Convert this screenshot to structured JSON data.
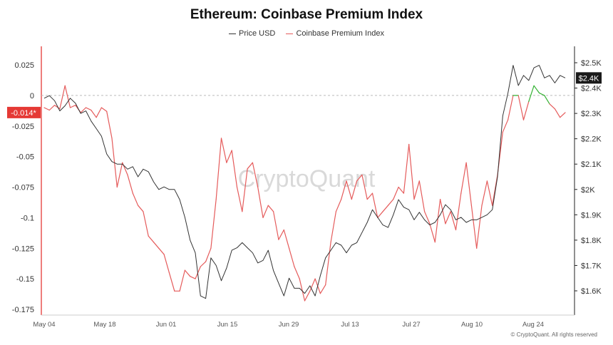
{
  "colors": {
    "price": "#333333",
    "premium_up": "#e55b5b",
    "premium_green": "#34b233",
    "axis_red": "#e53935",
    "badge_dark": "#1a1a1a"
  },
  "chart_data": {
    "type": "line",
    "title": "Ethereum: Coinbase Premium Index",
    "legend_position": "top-center",
    "grid": false,
    "x_tick_labels": [
      "May 04",
      "May 18",
      "Jun 01",
      "Jun 15",
      "Jun 29",
      "Jul 13",
      "Jul 27",
      "Aug 10",
      "Aug 24"
    ],
    "y_left": {
      "ticks": [
        "0.025",
        "0",
        "-0.025",
        "-0.05",
        "-0.075",
        "-0.1",
        "-0.125",
        "-0.15",
        "-0.175"
      ],
      "range": [
        -0.175,
        0.025
      ]
    },
    "y_right": {
      "ticks": [
        "$2.5K",
        "$2.4K",
        "$2.3K",
        "$2.2K",
        "$2.1K",
        "$2K",
        "$1.9K",
        "$1.8K",
        "$1.7K",
        "$1.6K"
      ],
      "range": [
        1.6,
        2.5
      ]
    },
    "zero_line": 0,
    "current_premium_label": "-0.014*",
    "current_price_label": "$2.4K",
    "series": [
      {
        "name": "Price USD",
        "axis": "right",
        "values": [
          2.36,
          2.37,
          2.35,
          2.31,
          2.33,
          2.36,
          2.34,
          2.3,
          2.31,
          2.27,
          2.24,
          2.21,
          2.14,
          2.11,
          2.1,
          2.1,
          2.08,
          2.09,
          2.05,
          2.08,
          2.07,
          2.03,
          2.0,
          2.01,
          2.0,
          2.0,
          1.96,
          1.89,
          1.8,
          1.75,
          1.58,
          1.57,
          1.73,
          1.7,
          1.64,
          1.69,
          1.76,
          1.77,
          1.79,
          1.77,
          1.75,
          1.71,
          1.72,
          1.76,
          1.68,
          1.63,
          1.58,
          1.65,
          1.61,
          1.61,
          1.59,
          1.62,
          1.58,
          1.66,
          1.73,
          1.76,
          1.79,
          1.78,
          1.75,
          1.78,
          1.79,
          1.83,
          1.87,
          1.92,
          1.89,
          1.86,
          1.85,
          1.9,
          1.96,
          1.93,
          1.92,
          1.88,
          1.91,
          1.88,
          1.86,
          1.87,
          1.9,
          1.94,
          1.92,
          1.88,
          1.89,
          1.87,
          1.88,
          1.88,
          1.89,
          1.9,
          1.92,
          2.05,
          2.29,
          2.38,
          2.49,
          2.41,
          2.45,
          2.43,
          2.48,
          2.49,
          2.44,
          2.45,
          2.42,
          2.45,
          2.44
        ]
      },
      {
        "name": "Coinbase Premium Index",
        "axis": "left",
        "values": [
          -0.01,
          -0.012,
          -0.008,
          -0.011,
          0.008,
          -0.01,
          -0.008,
          -0.014,
          -0.01,
          -0.012,
          -0.018,
          -0.01,
          -0.013,
          -0.035,
          -0.075,
          -0.055,
          -0.065,
          -0.08,
          -0.09,
          -0.095,
          -0.115,
          -0.12,
          -0.125,
          -0.13,
          -0.145,
          -0.16,
          -0.16,
          -0.143,
          -0.148,
          -0.15,
          -0.14,
          -0.136,
          -0.125,
          -0.085,
          -0.035,
          -0.055,
          -0.045,
          -0.075,
          -0.095,
          -0.06,
          -0.055,
          -0.075,
          -0.1,
          -0.09,
          -0.095,
          -0.118,
          -0.11,
          -0.125,
          -0.14,
          -0.15,
          -0.168,
          -0.16,
          -0.15,
          -0.162,
          -0.155,
          -0.12,
          -0.095,
          -0.085,
          -0.07,
          -0.085,
          -0.07,
          -0.065,
          -0.085,
          -0.08,
          -0.1,
          -0.095,
          -0.09,
          -0.085,
          -0.075,
          -0.08,
          -0.04,
          -0.085,
          -0.07,
          -0.095,
          -0.105,
          -0.12,
          -0.085,
          -0.105,
          -0.095,
          -0.11,
          -0.08,
          -0.055,
          -0.09,
          -0.125,
          -0.09,
          -0.07,
          -0.09,
          -0.065,
          -0.03,
          -0.02,
          0.0,
          0.0,
          -0.02,
          -0.005,
          0.008,
          0.002,
          0.0,
          -0.007,
          -0.011,
          -0.018,
          -0.014
        ]
      }
    ]
  },
  "x_axis_extent": {
    "first_label": "May 04",
    "spacing_days": 14
  },
  "watermark": "CryptoQuant",
  "copyright": "© CryptoQuant. All rights reserved"
}
